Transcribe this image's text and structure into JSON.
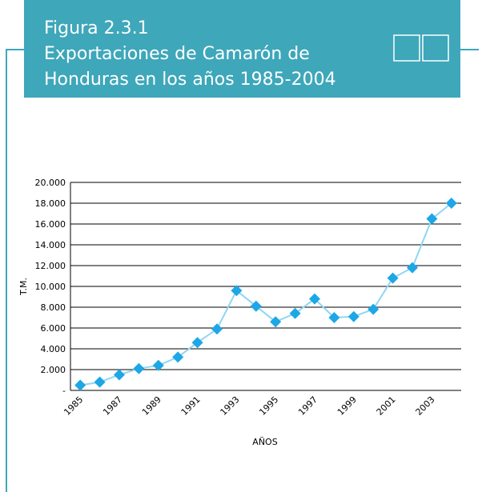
{
  "chart_data": {
    "type": "line",
    "figure_label": "Figura 2.3.1",
    "title": [
      "Exportaciones de Camarón de",
      "Honduras en los años 1985-2004"
    ],
    "ylabel": "T.M.",
    "xlabel": "AÑOS",
    "categories": [
      "1985",
      null,
      "1987",
      null,
      "1989",
      null,
      "1991",
      null,
      "1993",
      null,
      "1995",
      null,
      "1997",
      null,
      "1999",
      null,
      "2001",
      null,
      "2003",
      null
    ],
    "series": [
      {
        "name": "Exportaciones",
        "color": "#1ea7e6",
        "line_color": "#8fd6f2",
        "values": [
          500,
          800,
          1500,
          2100,
          2400,
          3200,
          4600,
          5900,
          9600,
          8100,
          6600,
          7400,
          8800,
          7000,
          7100,
          7800,
          10800,
          11800,
          16500,
          18000
        ]
      }
    ],
    "ylim": [
      0,
      20000
    ],
    "yticks": [
      {
        "value": 0,
        "label": "-"
      },
      {
        "value": 2000,
        "label": "2.000"
      },
      {
        "value": 4000,
        "label": "4.000"
      },
      {
        "value": 6000,
        "label": "6.000"
      },
      {
        "value": 8000,
        "label": "8.000"
      },
      {
        "value": 10000,
        "label": "10.000"
      },
      {
        "value": 12000,
        "label": "12.000"
      },
      {
        "value": 14000,
        "label": "14.000"
      },
      {
        "value": 16000,
        "label": "16.000"
      },
      {
        "value": 18000,
        "label": "18.000"
      },
      {
        "value": 20000,
        "label": "20.000"
      }
    ],
    "grid": true
  }
}
